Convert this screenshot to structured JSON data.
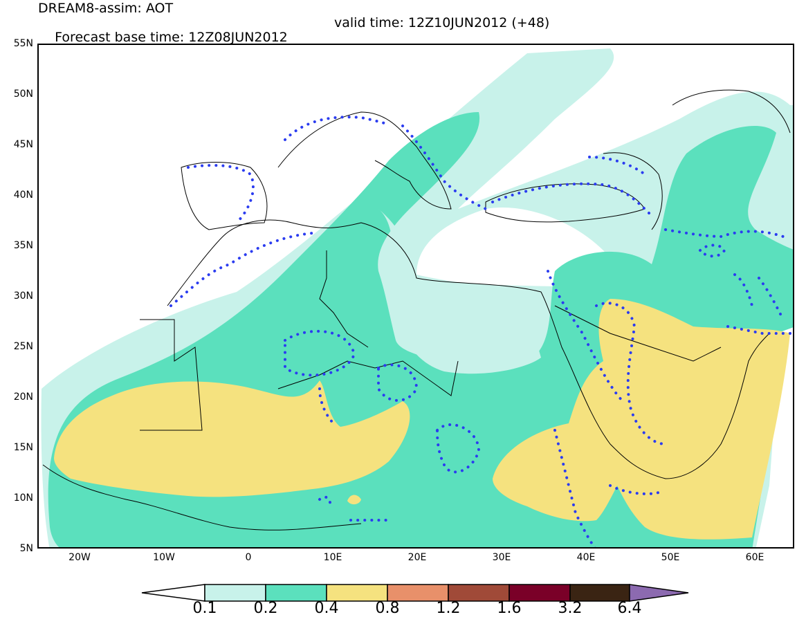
{
  "header": {
    "line1": "DREAM8-assim: AOT",
    "line2_left": "Forecast base time: 12Z08JUN2012",
    "line2_right": "valid time: 12Z10JUN2012 (+48)"
  },
  "axes": {
    "lat_labels": [
      "55N",
      "50N",
      "45N",
      "40N",
      "35N",
      "30N",
      "25N",
      "20N",
      "15N",
      "10N",
      "5N"
    ],
    "lon_labels": [
      "20W",
      "10W",
      "0",
      "10E",
      "20E",
      "30E",
      "40E",
      "50E",
      "60E"
    ]
  },
  "colorbar": {
    "labels": [
      "0.1",
      "0.2",
      "0.4",
      "0.8",
      "1.2",
      "1.6",
      "3.2",
      "6.4"
    ],
    "colors": [
      "#c8f2ea",
      "#5be0bd",
      "#f5e27f",
      "#e8906a",
      "#a04a38",
      "#7a0028",
      "#3a2413",
      "#8c6ab0"
    ]
  },
  "legend_colors": {
    "contour_dots": "#2b3cf0",
    "coastline": "#000000"
  }
}
